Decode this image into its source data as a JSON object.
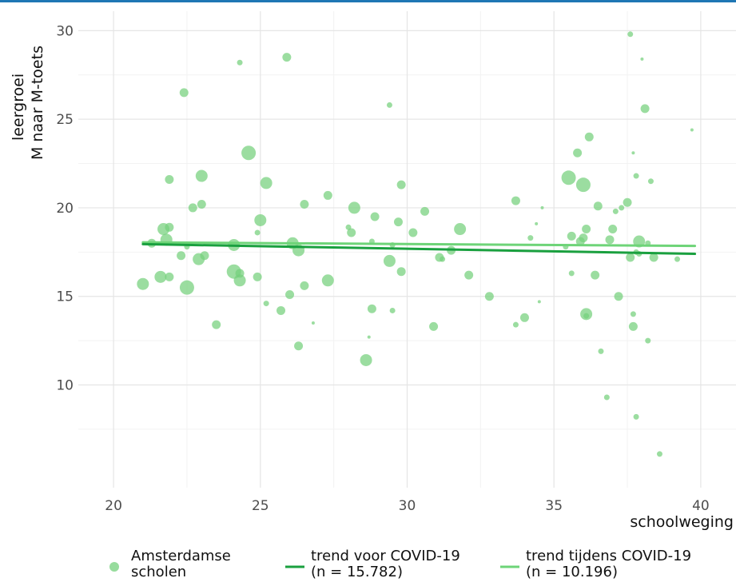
{
  "chart_data": {
    "type": "scatter",
    "xlabel": "schoolweging",
    "ylabel_lines": [
      "leergroei",
      "M naar M-toets"
    ],
    "xlim": [
      18.8,
      41.2
    ],
    "ylim": [
      4.2,
      31.1
    ],
    "x_ticks": [
      20,
      25,
      30,
      35,
      40
    ],
    "y_ticks": [
      10,
      15,
      20,
      25,
      30
    ],
    "grid": true,
    "legend_position": "bottom",
    "colors": {
      "points": "#74d07c",
      "trend_before": "#1aa03f",
      "trend_during": "#6ed478",
      "grid": "#e5e5e5",
      "tick_text": "#4d4d4d",
      "top_bar": "#1f77b4"
    },
    "series": [
      {
        "name": "Amsterdamse scholen",
        "kind": "points",
        "points": [
          {
            "x": 21.0,
            "y": 15.7,
            "size": 3
          },
          {
            "x": 21.3,
            "y": 18.0,
            "size": 2
          },
          {
            "x": 21.6,
            "y": 16.1,
            "size": 3
          },
          {
            "x": 21.7,
            "y": 18.8,
            "size": 3
          },
          {
            "x": 21.8,
            "y": 18.2,
            "size": 3
          },
          {
            "x": 21.9,
            "y": 18.9,
            "size": 2
          },
          {
            "x": 21.9,
            "y": 21.6,
            "size": 2
          },
          {
            "x": 21.9,
            "y": 16.1,
            "size": 2
          },
          {
            "x": 22.3,
            "y": 17.3,
            "size": 2
          },
          {
            "x": 22.4,
            "y": 26.5,
            "size": 2
          },
          {
            "x": 22.5,
            "y": 15.5,
            "size": 4
          },
          {
            "x": 22.5,
            "y": 17.8,
            "size": 1
          },
          {
            "x": 22.7,
            "y": 20.0,
            "size": 2
          },
          {
            "x": 22.9,
            "y": 17.1,
            "size": 3
          },
          {
            "x": 23.0,
            "y": 21.8,
            "size": 3
          },
          {
            "x": 23.0,
            "y": 20.2,
            "size": 2
          },
          {
            "x": 23.1,
            "y": 17.3,
            "size": 2
          },
          {
            "x": 23.5,
            "y": 13.4,
            "size": 2
          },
          {
            "x": 24.1,
            "y": 17.9,
            "size": 3
          },
          {
            "x": 24.1,
            "y": 16.4,
            "size": 4
          },
          {
            "x": 24.3,
            "y": 28.2,
            "size": 1
          },
          {
            "x": 24.3,
            "y": 15.9,
            "size": 3
          },
          {
            "x": 24.3,
            "y": 16.3,
            "size": 2
          },
          {
            "x": 24.6,
            "y": 23.1,
            "size": 4
          },
          {
            "x": 24.9,
            "y": 16.1,
            "size": 2
          },
          {
            "x": 24.9,
            "y": 18.6,
            "size": 1
          },
          {
            "x": 25.0,
            "y": 19.3,
            "size": 3
          },
          {
            "x": 25.2,
            "y": 21.4,
            "size": 3
          },
          {
            "x": 25.2,
            "y": 14.6,
            "size": 1
          },
          {
            "x": 25.7,
            "y": 14.2,
            "size": 2
          },
          {
            "x": 25.9,
            "y": 28.5,
            "size": 2
          },
          {
            "x": 26.0,
            "y": 15.1,
            "size": 2
          },
          {
            "x": 26.1,
            "y": 18.0,
            "size": 3
          },
          {
            "x": 26.3,
            "y": 17.6,
            "size": 3
          },
          {
            "x": 26.3,
            "y": 12.2,
            "size": 2
          },
          {
            "x": 26.5,
            "y": 20.2,
            "size": 2
          },
          {
            "x": 26.5,
            "y": 15.6,
            "size": 2
          },
          {
            "x": 26.8,
            "y": 13.5,
            "size": 0
          },
          {
            "x": 27.3,
            "y": 20.7,
            "size": 2
          },
          {
            "x": 27.3,
            "y": 15.9,
            "size": 3
          },
          {
            "x": 28.0,
            "y": 18.9,
            "size": 1
          },
          {
            "x": 28.1,
            "y": 18.6,
            "size": 2
          },
          {
            "x": 28.2,
            "y": 20.0,
            "size": 3
          },
          {
            "x": 28.6,
            "y": 11.4,
            "size": 3
          },
          {
            "x": 28.7,
            "y": 12.7,
            "size": 0
          },
          {
            "x": 28.8,
            "y": 14.3,
            "size": 2
          },
          {
            "x": 28.8,
            "y": 18.1,
            "size": 1
          },
          {
            "x": 28.9,
            "y": 19.5,
            "size": 2
          },
          {
            "x": 29.4,
            "y": 25.8,
            "size": 1
          },
          {
            "x": 29.4,
            "y": 17.0,
            "size": 3
          },
          {
            "x": 29.5,
            "y": 17.9,
            "size": 1
          },
          {
            "x": 29.5,
            "y": 14.2,
            "size": 1
          },
          {
            "x": 29.7,
            "y": 19.2,
            "size": 2
          },
          {
            "x": 29.8,
            "y": 16.4,
            "size": 2
          },
          {
            "x": 29.8,
            "y": 21.3,
            "size": 2
          },
          {
            "x": 30.2,
            "y": 18.6,
            "size": 2
          },
          {
            "x": 30.6,
            "y": 19.8,
            "size": 2
          },
          {
            "x": 30.9,
            "y": 13.3,
            "size": 2
          },
          {
            "x": 31.1,
            "y": 17.2,
            "size": 2
          },
          {
            "x": 31.2,
            "y": 17.1,
            "size": 1
          },
          {
            "x": 31.5,
            "y": 17.6,
            "size": 2
          },
          {
            "x": 31.8,
            "y": 18.8,
            "size": 3
          },
          {
            "x": 32.1,
            "y": 16.2,
            "size": 2
          },
          {
            "x": 32.8,
            "y": 15.0,
            "size": 2
          },
          {
            "x": 33.7,
            "y": 13.4,
            "size": 1
          },
          {
            "x": 33.7,
            "y": 20.4,
            "size": 2
          },
          {
            "x": 34.0,
            "y": 13.8,
            "size": 2
          },
          {
            "x": 34.2,
            "y": 18.3,
            "size": 1
          },
          {
            "x": 34.4,
            "y": 19.1,
            "size": 0
          },
          {
            "x": 34.5,
            "y": 14.7,
            "size": 0
          },
          {
            "x": 34.6,
            "y": 20.0,
            "size": 0
          },
          {
            "x": 35.4,
            "y": 17.8,
            "size": 1
          },
          {
            "x": 35.5,
            "y": 21.7,
            "size": 4
          },
          {
            "x": 35.6,
            "y": 16.3,
            "size": 1
          },
          {
            "x": 35.6,
            "y": 18.4,
            "size": 2
          },
          {
            "x": 35.8,
            "y": 23.1,
            "size": 2
          },
          {
            "x": 35.9,
            "y": 18.1,
            "size": 2
          },
          {
            "x": 36.0,
            "y": 21.3,
            "size": 4
          },
          {
            "x": 36.0,
            "y": 18.3,
            "size": 2
          },
          {
            "x": 36.1,
            "y": 18.8,
            "size": 2
          },
          {
            "x": 36.1,
            "y": 14.0,
            "size": 3
          },
          {
            "x": 36.1,
            "y": 13.9,
            "size": 1
          },
          {
            "x": 36.2,
            "y": 24.0,
            "size": 2
          },
          {
            "x": 36.4,
            "y": 16.2,
            "size": 2
          },
          {
            "x": 36.5,
            "y": 20.1,
            "size": 2
          },
          {
            "x": 36.6,
            "y": 11.9,
            "size": 1
          },
          {
            "x": 36.8,
            "y": 9.3,
            "size": 1
          },
          {
            "x": 36.9,
            "y": 18.2,
            "size": 2
          },
          {
            "x": 37.0,
            "y": 18.8,
            "size": 2
          },
          {
            "x": 37.1,
            "y": 19.8,
            "size": 1
          },
          {
            "x": 37.2,
            "y": 15.0,
            "size": 2
          },
          {
            "x": 37.3,
            "y": 20.0,
            "size": 1
          },
          {
            "x": 37.5,
            "y": 20.3,
            "size": 2
          },
          {
            "x": 37.6,
            "y": 17.2,
            "size": 2
          },
          {
            "x": 37.6,
            "y": 29.8,
            "size": 1
          },
          {
            "x": 37.7,
            "y": 14.0,
            "size": 1
          },
          {
            "x": 37.7,
            "y": 13.3,
            "size": 2
          },
          {
            "x": 37.7,
            "y": 23.1,
            "size": 0
          },
          {
            "x": 37.8,
            "y": 21.8,
            "size": 1
          },
          {
            "x": 37.8,
            "y": 8.2,
            "size": 1
          },
          {
            "x": 37.8,
            "y": 17.5,
            "size": 1
          },
          {
            "x": 37.9,
            "y": 17.4,
            "size": 1
          },
          {
            "x": 37.9,
            "y": 18.1,
            "size": 3
          },
          {
            "x": 38.0,
            "y": 28.4,
            "size": 0
          },
          {
            "x": 38.1,
            "y": 25.6,
            "size": 2
          },
          {
            "x": 38.2,
            "y": 12.5,
            "size": 1
          },
          {
            "x": 38.2,
            "y": 18.0,
            "size": 1
          },
          {
            "x": 38.3,
            "y": 21.5,
            "size": 1
          },
          {
            "x": 38.4,
            "y": 17.2,
            "size": 2
          },
          {
            "x": 38.6,
            "y": 6.1,
            "size": 1
          },
          {
            "x": 39.2,
            "y": 17.1,
            "size": 1
          },
          {
            "x": 39.7,
            "y": 24.4,
            "size": 0
          }
        ]
      },
      {
        "name": "trend voor COVID-19",
        "note": "(n = 15.782)",
        "kind": "line",
        "x": [
          21.0,
          39.8
        ],
        "y": [
          17.95,
          17.4
        ]
      },
      {
        "name": "trend tijdens COVID-19",
        "note": "(n = 10.196)",
        "kind": "line",
        "x": [
          21.0,
          39.8
        ],
        "y": [
          18.05,
          17.85
        ]
      }
    ],
    "legend_entries": [
      {
        "lines": [
          "Amsterdamse",
          "scholen"
        ],
        "key": "point"
      },
      {
        "lines": [
          "trend voor COVID-19",
          "(n = 15.782)"
        ],
        "key": "line-dark"
      },
      {
        "lines": [
          "trend tijdens COVID-19",
          "(n = 10.196)"
        ],
        "key": "line-light"
      }
    ]
  }
}
